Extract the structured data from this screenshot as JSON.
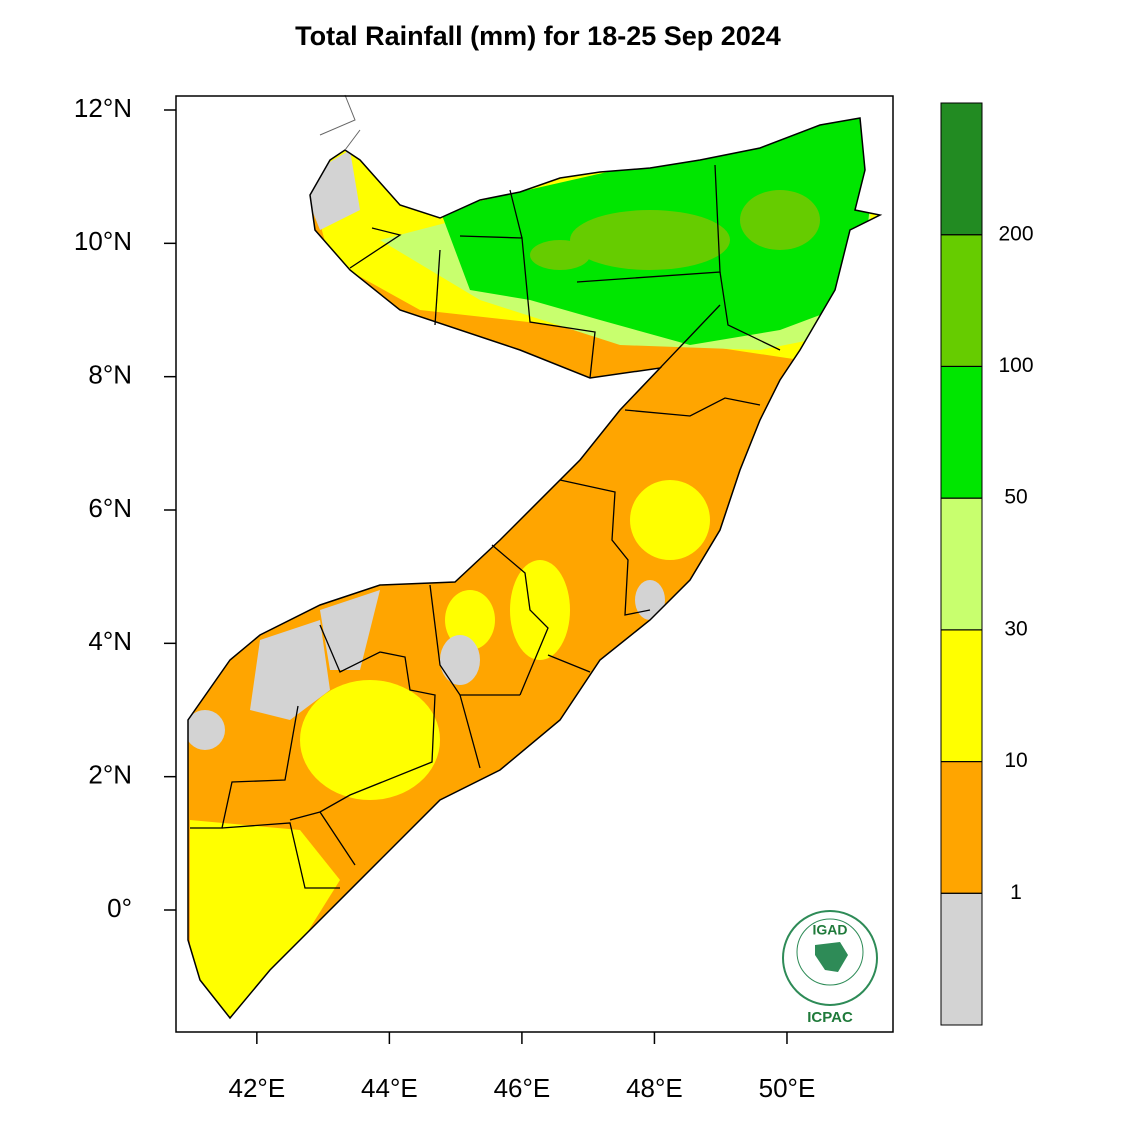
{
  "map": {
    "title": "Total Rainfall (mm) for 18-25 Sep 2024",
    "xlim": [
      40.78,
      51.6
    ],
    "ylim": [
      -1.83,
      12.21
    ],
    "xticks": [
      {
        "value": 42,
        "label": "42°E"
      },
      {
        "value": 44,
        "label": "44°E"
      },
      {
        "value": 46,
        "label": "46°E"
      },
      {
        "value": 48,
        "label": "48°E"
      },
      {
        "value": 50,
        "label": "50°E"
      }
    ],
    "yticks": [
      {
        "value": 0,
        "label": "0°"
      },
      {
        "value": 2,
        "label": "2°N"
      },
      {
        "value": 4,
        "label": "4°N"
      },
      {
        "value": 6,
        "label": "6°N"
      },
      {
        "value": 8,
        "label": "8°N"
      },
      {
        "value": 10,
        "label": "10°N"
      },
      {
        "value": 12,
        "label": "12°N"
      }
    ],
    "colorbar": {
      "levels": [
        1,
        10,
        30,
        50,
        100,
        200
      ],
      "colors": [
        "#d3d3d3",
        "#ffa500",
        "#ffff00",
        "#c8ff6e",
        "#00e600",
        "#66cc00",
        "#228b22"
      ]
    },
    "logo": {
      "top": "IGAD",
      "bottom": "ICPAC"
    }
  }
}
